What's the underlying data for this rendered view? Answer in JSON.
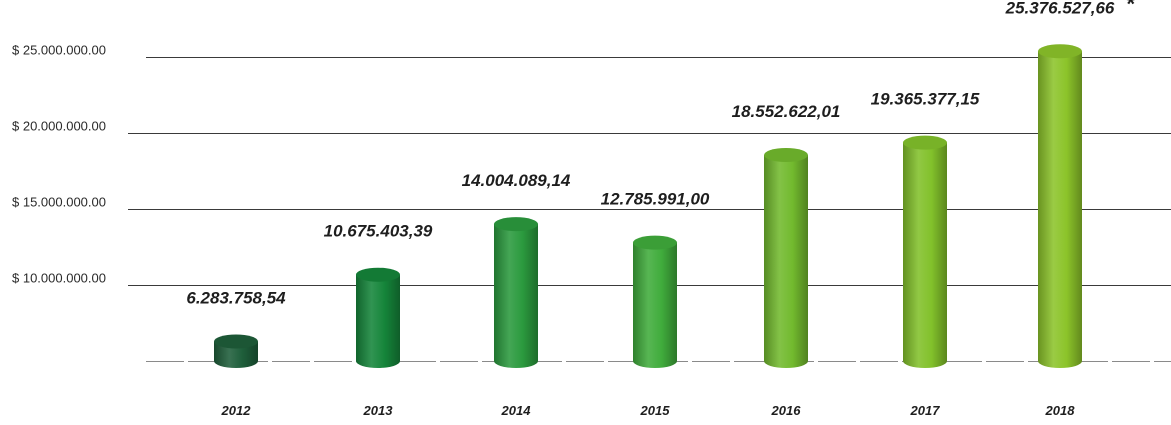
{
  "chart_data": {
    "type": "bar",
    "style": "cylinder",
    "title": "",
    "xlabel": "",
    "ylabel": "",
    "categories": [
      "2012",
      "2013",
      "2014",
      "2015",
      "2016",
      "2017",
      "2018"
    ],
    "values": [
      6283758.54,
      10675403.39,
      14004089.14,
      12785991.0,
      18552622.01,
      19365377.15,
      25376527.66
    ],
    "value_labels": [
      "6.283.758,54",
      "10.675.403,39",
      "14.004.089,14",
      "12.785.991,00",
      "18.552.622,01",
      "19.365.377,15",
      "25.376.527,66"
    ],
    "value_footnotes": [
      "",
      "",
      "",
      "",
      "",
      "",
      "*"
    ],
    "yticks": [
      10000000,
      15000000,
      20000000,
      25000000
    ],
    "ytick_labels": [
      "$ 10.000.000.00",
      "$ 15.000.000.00",
      "$ 20.000.000.00",
      "$ 25.000.000.00"
    ],
    "baseline_value": 5000000,
    "grid": true,
    "bar_colors": [
      "#1e5e3a",
      "#15853a",
      "#2b9a3e",
      "#40ac3c",
      "#72ba2e",
      "#82c12b",
      "#8cc42a"
    ]
  }
}
